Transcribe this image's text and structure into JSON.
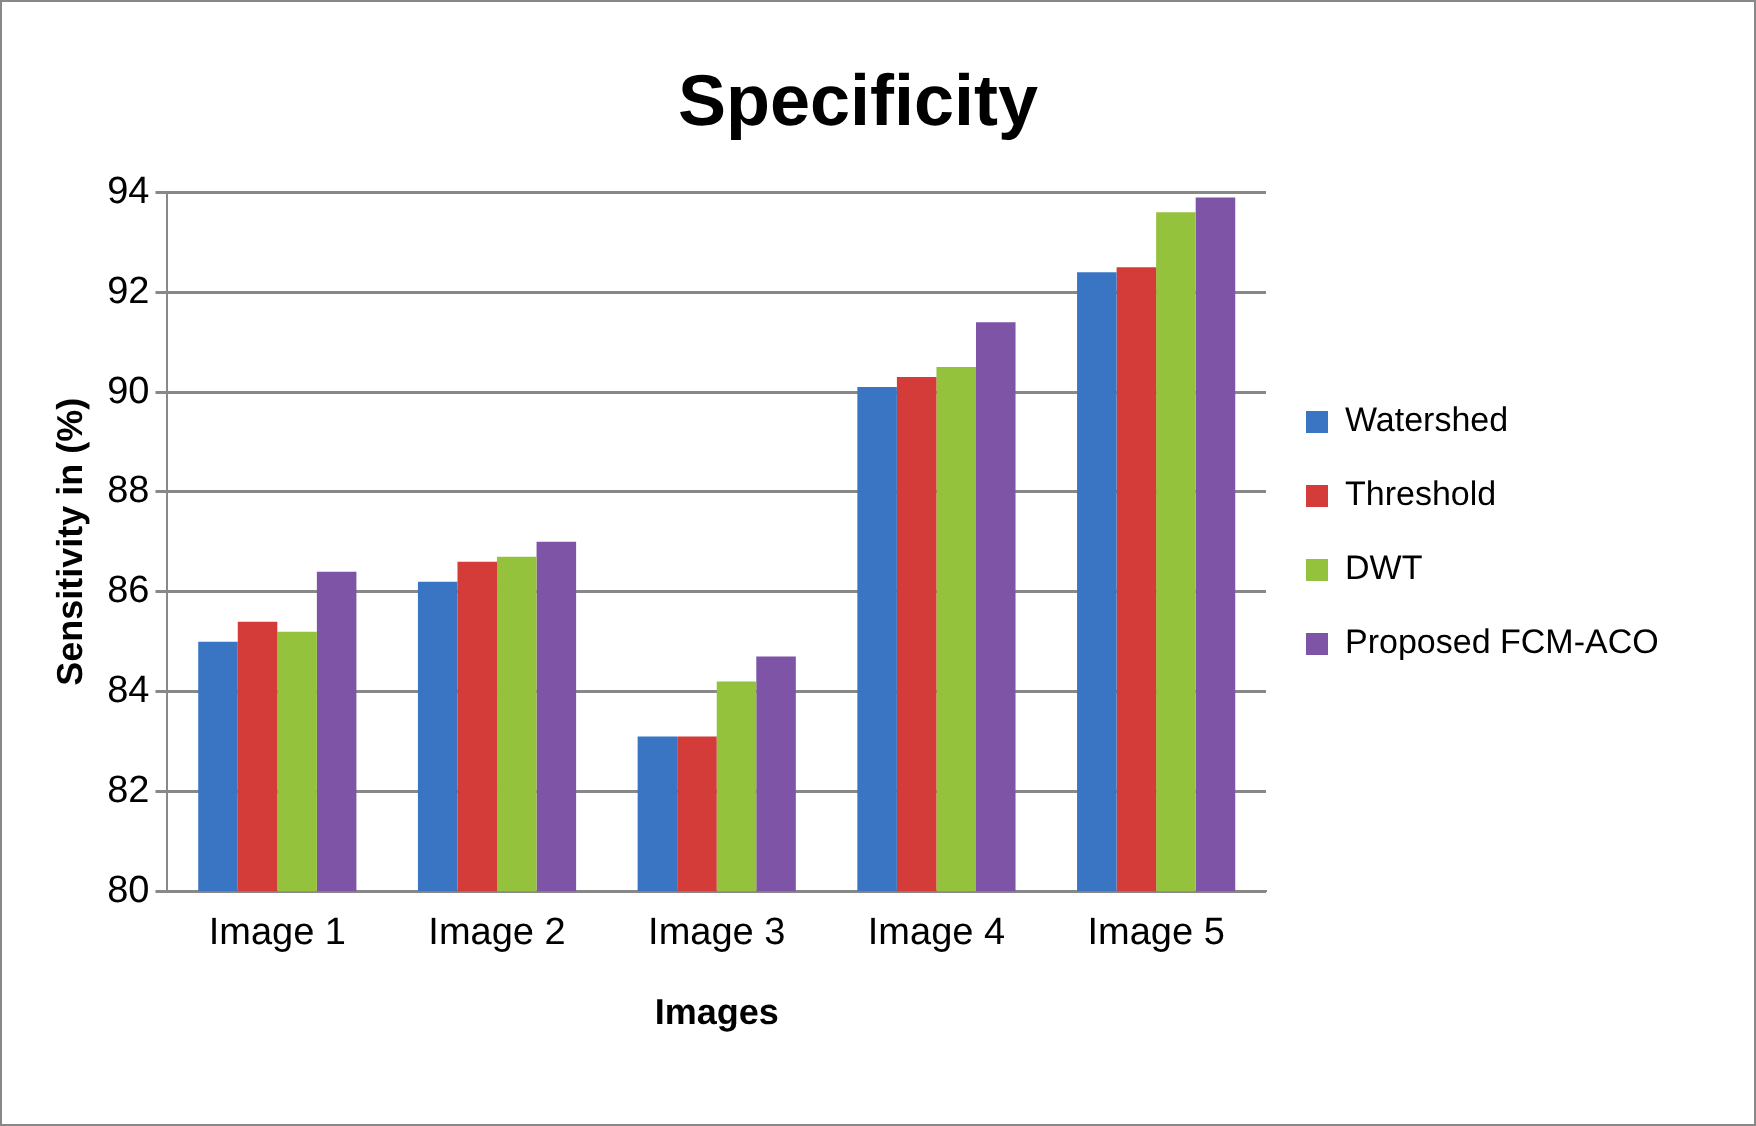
{
  "chart_data": {
    "type": "bar",
    "title": "Specificity",
    "xlabel": "Images",
    "ylabel": "Sensitivity in (%)",
    "categories": [
      "Image 1",
      "Image 2",
      "Image 3",
      "Image 4",
      "Image 5"
    ],
    "series": [
      {
        "name": "Watershed",
        "color": "#3a75c4",
        "values": [
          85.0,
          86.2,
          83.1,
          90.1,
          92.4
        ]
      },
      {
        "name": "Threshold",
        "color": "#d43c3a",
        "values": [
          85.4,
          86.6,
          83.1,
          90.3,
          92.5
        ]
      },
      {
        "name": "DWT",
        "color": "#94c23c",
        "values": [
          85.2,
          86.7,
          84.2,
          90.5,
          93.6
        ]
      },
      {
        "name": "Proposed FCM-ACO",
        "color": "#7e55a6",
        "values": [
          86.4,
          87.0,
          84.7,
          91.4,
          93.9
        ]
      }
    ],
    "ylim": [
      80,
      94
    ],
    "yticks": [
      80,
      82,
      84,
      86,
      88,
      90,
      92,
      94
    ],
    "grid": "y",
    "legend": "right"
  }
}
